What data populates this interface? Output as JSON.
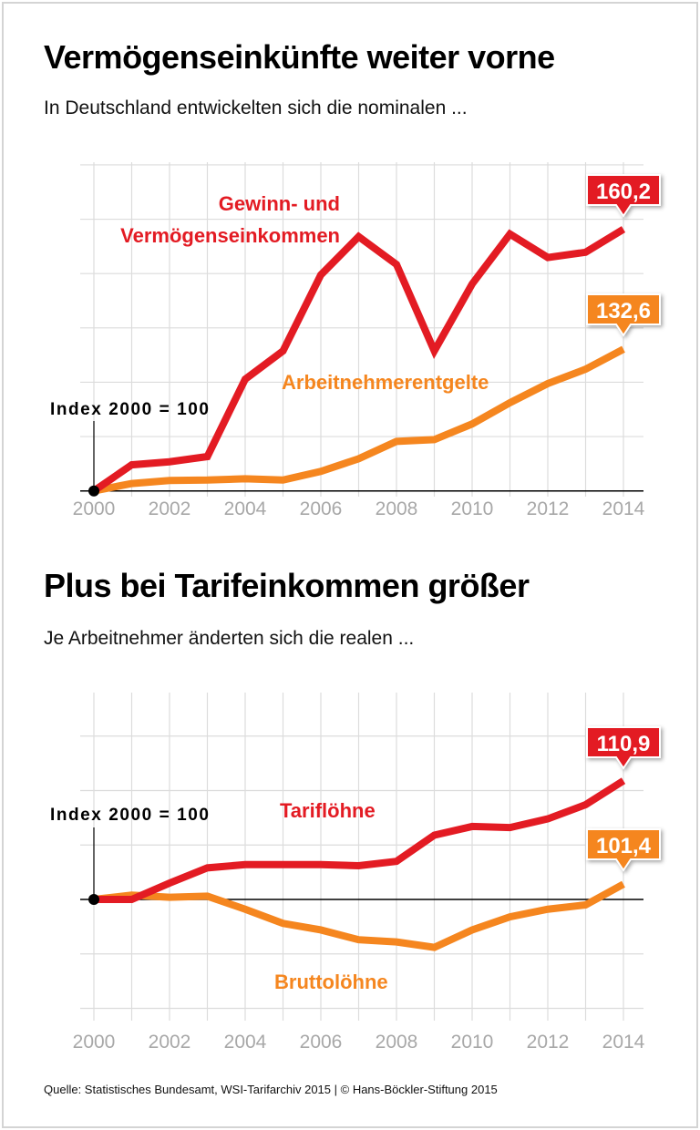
{
  "colors": {
    "red": "#e31b23",
    "orange": "#f5861f",
    "grid": "#dcdcdc",
    "tick": "#a8a8a8"
  },
  "footer": "Quelle: Statistisches Bundesamt, WSI-Tarifarchiv 2015 | © Hans-Böckler-Stiftung 2015",
  "chart_data": [
    {
      "type": "line",
      "title": "Vermögenseinkünfte weiter vorne",
      "subtitle": "In Deutschland entwickelten sich die nominalen ...",
      "annotation": "Index 2000 = 100",
      "x": [
        2000,
        2001,
        2002,
        2003,
        2004,
        2005,
        2006,
        2007,
        2008,
        2009,
        2010,
        2011,
        2012,
        2013,
        2014
      ],
      "tick_labels": [
        "2000",
        "2002",
        "2004",
        "2006",
        "2008",
        "2010",
        "2012",
        "2014"
      ],
      "ylim": [
        100,
        175
      ],
      "grid": true,
      "series": [
        {
          "name": "Gewinn- und Vermögenseinkommen",
          "name_lines": [
            "Gewinn- und",
            "Vermögenseinkommen"
          ],
          "color": "#e31b23",
          "end_label": "160,2",
          "values": [
            100,
            106.0,
            106.7,
            107.9,
            125.7,
            132.2,
            149.7,
            158.5,
            152.1,
            132.2,
            147.6,
            159.1,
            153.7,
            154.9,
            160.2
          ]
        },
        {
          "name": "Arbeitnehmerentgelte",
          "name_lines": [
            "Arbeitnehmerentgelte"
          ],
          "color": "#f5861f",
          "end_label": "132,6",
          "values": [
            100,
            101.7,
            102.4,
            102.5,
            102.8,
            102.5,
            104.5,
            107.4,
            111.4,
            111.8,
            115.4,
            120.3,
            124.7,
            128.0,
            132.6
          ]
        }
      ]
    },
    {
      "type": "line",
      "title": "Plus bei Tarifeinkommen größer",
      "subtitle": "Je Arbeitnehmer änderten sich die realen ...",
      "annotation": "Index 2000 = 100",
      "x": [
        2000,
        2001,
        2002,
        2003,
        2004,
        2005,
        2006,
        2007,
        2008,
        2009,
        2010,
        2011,
        2012,
        2013,
        2014
      ],
      "tick_labels": [
        "2000",
        "2002",
        "2004",
        "2006",
        "2008",
        "2010",
        "2012",
        "2014"
      ],
      "ylim": [
        89,
        119
      ],
      "grid": true,
      "series": [
        {
          "name": "Tariflöhne",
          "name_lines": [
            "Tariflöhne"
          ],
          "color": "#e31b23",
          "end_label": "110,9",
          "values": [
            100,
            100,
            101.5,
            102.9,
            103.2,
            103.2,
            103.2,
            103.1,
            103.5,
            105.9,
            106.7,
            106.6,
            107.4,
            108.7,
            110.9
          ]
        },
        {
          "name": "Bruttolöhne",
          "name_lines": [
            "Bruttolöhne"
          ],
          "color": "#f5861f",
          "end_label": "101,4",
          "values": [
            100,
            100.4,
            100.2,
            100.3,
            99.1,
            97.8,
            97.2,
            96.3,
            96.1,
            95.6,
            97.2,
            98.4,
            99.1,
            99.5,
            101.4
          ]
        }
      ]
    }
  ]
}
